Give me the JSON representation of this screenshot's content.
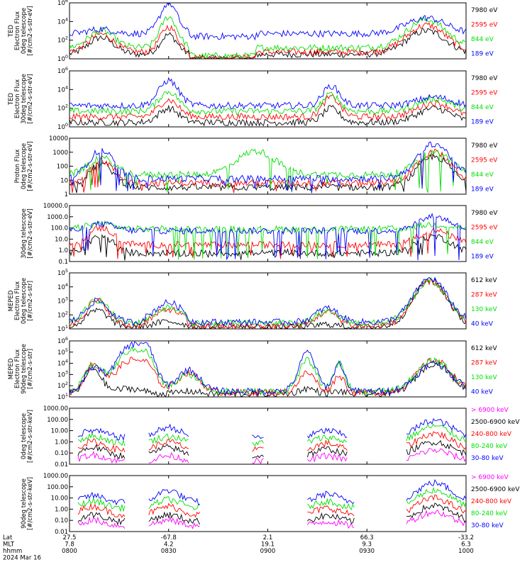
{
  "colors": {
    "black": "#000000",
    "red": "#ff0000",
    "green": "#00e000",
    "blue": "#0000ff",
    "magenta": "#ff00ff"
  },
  "chart_data": [
    {
      "type": "line",
      "panel": 1,
      "ylabel_lines": [
        "TED",
        "Electron Flux",
        "0deg telescope",
        "[#/cm2-s-str-eV]"
      ],
      "ytick_labels": [
        "10^0",
        "10^2",
        "10^4",
        "10^6"
      ],
      "yscale": "log",
      "ylim": [
        1,
        1000000
      ],
      "legend": [
        {
          "label": "7980 eV",
          "color": "#000000"
        },
        {
          "label": "2595 eV",
          "color": "#ff0000"
        },
        {
          "label": "844 eV",
          "color": "#00e000"
        },
        {
          "label": "189 eV",
          "color": "#0000ff"
        }
      ]
    },
    {
      "type": "line",
      "panel": 2,
      "ylabel_lines": [
        "TED",
        "Electron Flux",
        "30deg telescope",
        "[#/cm2-s-str-eV]"
      ],
      "ytick_labels": [
        "10^0",
        "10^2",
        "10^4",
        "10^6"
      ],
      "yscale": "log",
      "ylim": [
        1,
        1000000
      ],
      "legend": [
        {
          "label": "7980 eV",
          "color": "#000000"
        },
        {
          "label": "2595 eV",
          "color": "#ff0000"
        },
        {
          "label": "844 eV",
          "color": "#00e000"
        },
        {
          "label": "189 eV",
          "color": "#0000ff"
        }
      ]
    },
    {
      "type": "line",
      "panel": 3,
      "ylabel_lines": [
        "Proton Flux",
        "0deg telescope",
        "[#/cm2-s-str-eV]"
      ],
      "ytick_labels": [
        "1",
        "10",
        "100",
        "1000",
        "10000"
      ],
      "yscale": "log",
      "ylim": [
        1,
        10000
      ],
      "legend": [
        {
          "label": "7980 eV",
          "color": "#000000"
        },
        {
          "label": "2595 eV",
          "color": "#ff0000"
        },
        {
          "label": "844 eV",
          "color": "#00e000"
        },
        {
          "label": "189 eV",
          "color": "#0000ff"
        }
      ]
    },
    {
      "type": "line",
      "panel": 4,
      "ylabel_lines": [
        "30deg telescope",
        "[#/cm2-s-str-eV]"
      ],
      "ytick_labels": [
        "0.1",
        "1.0",
        "10.0",
        "100.0",
        "1000.0",
        "10000.0"
      ],
      "yscale": "log",
      "ylim": [
        0.1,
        10000
      ],
      "legend": [
        {
          "label": "7980 eV",
          "color": "#000000"
        },
        {
          "label": "2595 eV",
          "color": "#ff0000"
        },
        {
          "label": "844 eV",
          "color": "#00e000"
        },
        {
          "label": "189 eV",
          "color": "#0000ff"
        }
      ]
    },
    {
      "type": "line",
      "panel": 5,
      "ylabel_lines": [
        "MEPED",
        "Electron Flux",
        "0deg telescope",
        "[#/cm2-s-str]"
      ],
      "ytick_labels": [
        "10^1",
        "10^2",
        "10^3",
        "10^4",
        "10^5"
      ],
      "yscale": "log",
      "ylim": [
        10,
        100000
      ],
      "legend": [
        {
          "label": "612 keV",
          "color": "#000000"
        },
        {
          "label": "287 keV",
          "color": "#ff0000"
        },
        {
          "label": "130 keV",
          "color": "#00e000"
        },
        {
          "label": "40 keV",
          "color": "#0000ff"
        }
      ]
    },
    {
      "type": "line",
      "panel": 6,
      "ylabel_lines": [
        "MEPED",
        "Electron Flux",
        "90deg telescope",
        "[#/cm2-s-str]"
      ],
      "ytick_labels": [
        "10^1",
        "10^2",
        "10^3",
        "10^4",
        "10^5",
        "10^6"
      ],
      "yscale": "log",
      "ylim": [
        10,
        1000000
      ],
      "legend": [
        {
          "label": "612 keV",
          "color": "#000000"
        },
        {
          "label": "287 keV",
          "color": "#ff0000"
        },
        {
          "label": "130 keV",
          "color": "#00e000"
        },
        {
          "label": "40 keV",
          "color": "#0000ff"
        }
      ]
    },
    {
      "type": "line",
      "panel": 7,
      "ylabel_lines": [
        "0deg telescope",
        "[#/cm2-s-str-keV]"
      ],
      "ytick_labels": [
        "0.01",
        "0.10",
        "1.00",
        "10.00",
        "100.00",
        "1000.00"
      ],
      "yscale": "log",
      "ylim": [
        0.01,
        1000
      ],
      "legend": [
        {
          "label": "> 6900 keV",
          "color": "#ff00ff"
        },
        {
          "label": "2500-6900 keV",
          "color": "#000000"
        },
        {
          "label": "240-800 keV",
          "color": "#ff0000"
        },
        {
          "label": "80-240 keV",
          "color": "#00e000"
        },
        {
          "label": "30-80 keV",
          "color": "#0000ff"
        }
      ]
    },
    {
      "type": "line",
      "panel": 8,
      "ylabel_lines": [
        "90deg telescope",
        "[#/cm2-s-str-keV]"
      ],
      "ytick_labels": [
        "0.01",
        "0.10",
        "1.00",
        "10.00",
        "100.00",
        "1000.00"
      ],
      "yscale": "log",
      "ylim": [
        0.01,
        1000
      ],
      "legend": [
        {
          "label": "> 6900 keV",
          "color": "#ff00ff"
        },
        {
          "label": "2500-6900 keV",
          "color": "#000000"
        },
        {
          "label": "240-800 keV",
          "color": "#ff0000"
        },
        {
          "label": "80-240 keV",
          "color": "#00e000"
        },
        {
          "label": "30-80 keV",
          "color": "#0000ff"
        }
      ]
    }
  ],
  "x_axis": {
    "row_labels": [
      "Lat",
      "MLT",
      "hhmm",
      "2024 Mar 16"
    ],
    "ticks": [
      {
        "lat": "27.5",
        "mlt": "7.8",
        "hhmm": "0800"
      },
      {
        "lat": "-67.8",
        "mlt": "4.2",
        "hhmm": "0830"
      },
      {
        "lat": "2.1",
        "mlt": "19.1",
        "hhmm": "0900"
      },
      {
        "lat": "66.3",
        "mlt": "9.3",
        "hhmm": "0930"
      },
      {
        "lat": "-33.2",
        "mlt": "6.3",
        "hhmm": "1000"
      }
    ]
  }
}
